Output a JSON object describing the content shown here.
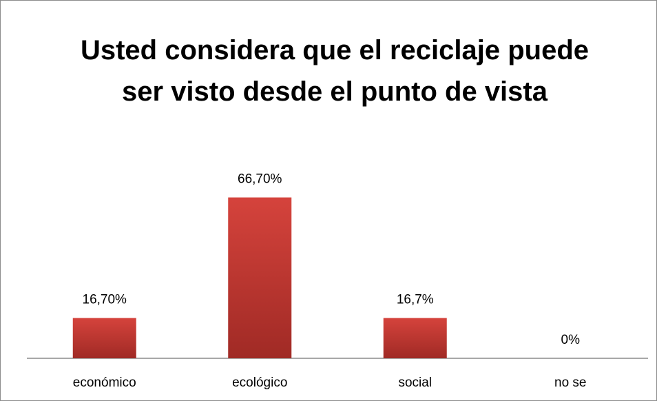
{
  "chart_data": {
    "type": "bar",
    "title": "Usted considera que el reciclaje puede ser visto desde el punto de vista",
    "categories": [
      "económico",
      "ecológico",
      "social",
      "no se"
    ],
    "values": [
      16.7,
      66.7,
      16.7,
      0
    ],
    "value_labels": [
      "16,70%",
      "66,70%",
      "16,7%",
      "0%"
    ],
    "color": "#c0392b"
  }
}
